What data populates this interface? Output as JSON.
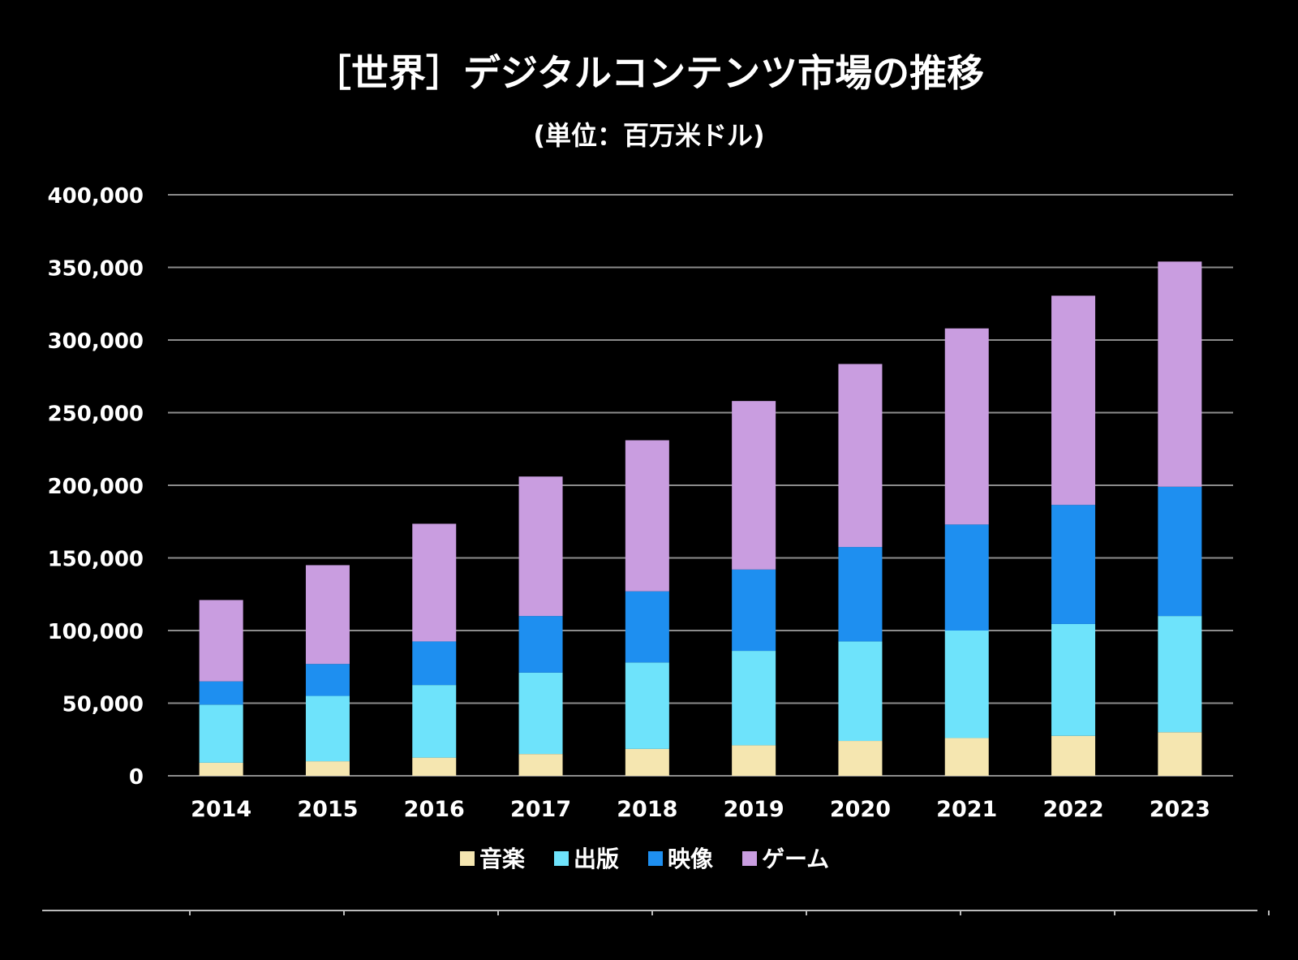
{
  "chart_data": {
    "type": "bar",
    "stacked": true,
    "title": "［世界］デジタルコンテンツ市場の推移",
    "subtitle": "(単位：百万米ドル)",
    "xlabel": "",
    "ylabel": "",
    "categories": [
      "2014",
      "2015",
      "2016",
      "2017",
      "2018",
      "2019",
      "2020",
      "2021",
      "2022",
      "2023"
    ],
    "ylim": [
      0,
      400000
    ],
    "yticks": [
      0,
      50000,
      100000,
      150000,
      200000,
      250000,
      300000,
      350000,
      400000
    ],
    "ytick_labels": [
      "0",
      "50,000",
      "100,000",
      "150,000",
      "200,000",
      "250,000",
      "300,000",
      "350,000",
      "400,000"
    ],
    "grid": true,
    "legend_position": "bottom-center",
    "series": [
      {
        "name": "音楽",
        "color": "#f5e6b0",
        "values": [
          9000,
          10000,
          12500,
          15000,
          18500,
          21000,
          24000,
          26000,
          27500,
          30000
        ]
      },
      {
        "name": "出版",
        "color": "#6ee3fb",
        "values": [
          40000,
          45000,
          50000,
          56000,
          59500,
          65000,
          68500,
          74000,
          77000,
          80000
        ]
      },
      {
        "name": "映像",
        "color": "#1e8ff0",
        "values": [
          16000,
          22000,
          30000,
          39000,
          49000,
          56000,
          65000,
          73000,
          82000,
          89000
        ]
      },
      {
        "name": "ゲーム",
        "color": "#c99de0",
        "values": [
          56000,
          68000,
          81000,
          96000,
          104000,
          116000,
          126000,
          135000,
          144000,
          155000
        ]
      }
    ]
  }
}
